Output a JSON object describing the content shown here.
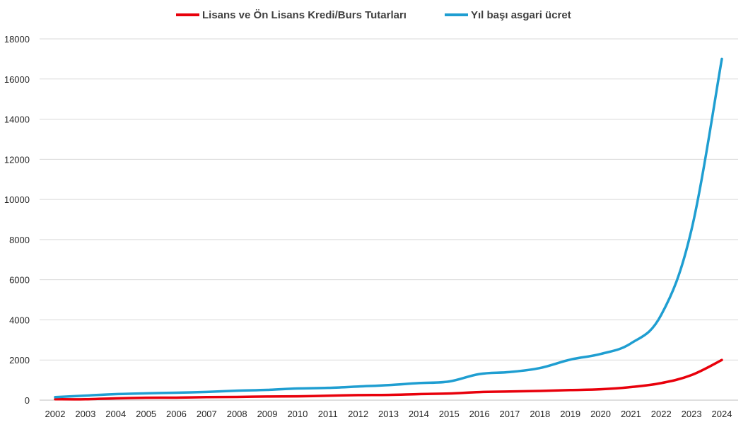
{
  "chart_data": {
    "type": "line",
    "title": "",
    "xlabel": "",
    "ylabel": "",
    "ylim": [
      0,
      18000
    ],
    "yticks": [
      0,
      2000,
      4000,
      6000,
      8000,
      10000,
      12000,
      14000,
      16000,
      18000
    ],
    "grid": "horizontal",
    "legend_position": "top",
    "x": [
      "2002",
      "2003",
      "2004",
      "2005",
      "2006",
      "2007",
      "2008",
      "2009",
      "2010",
      "2011",
      "2012",
      "2013",
      "2014",
      "2015",
      "2016",
      "2017",
      "2018",
      "2019",
      "2020",
      "2021",
      "2022",
      "2023",
      "2024"
    ],
    "series": [
      {
        "name": "Lisans ve Ön Lisans Kredi/Burs Tutarları",
        "color": "#e8000b",
        "values": [
          45,
          45,
          90,
          120,
          125,
          150,
          160,
          180,
          190,
          220,
          250,
          260,
          300,
          330,
          400,
          430,
          460,
          500,
          540,
          650,
          850,
          1250,
          2000
        ]
      },
      {
        "name": "Yıl başı asgari ücret",
        "color": "#1f9ed1",
        "values": [
          150,
          225,
          300,
          340,
          370,
          410,
          470,
          510,
          580,
          610,
          680,
          750,
          850,
          930,
          1300,
          1400,
          1600,
          2020,
          2300,
          2830,
          4250,
          8500,
          17000
        ]
      }
    ]
  }
}
